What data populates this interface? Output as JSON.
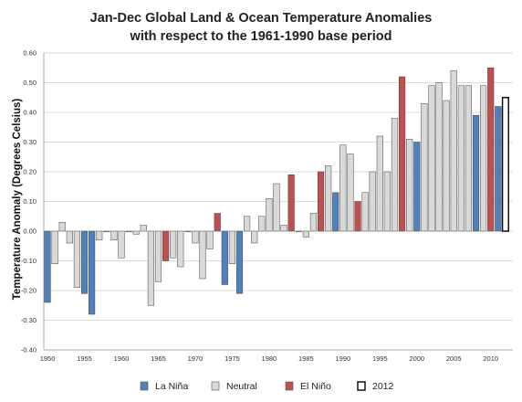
{
  "chart_data": {
    "type": "bar",
    "title": "Jan-Dec Global Land & Ocean Temperature Anomalies",
    "subtitle": "with respect to the 1961-1990 base period",
    "ylabel": "Temperature Anomaly (Degrees Celsius)",
    "xlabel": "",
    "ylim": [
      -0.4,
      0.6
    ],
    "yticks": [
      "0.60",
      "0.50",
      "0.40",
      "0.30",
      "0.20",
      "0.10",
      "0.00",
      "-0.10",
      "-0.20",
      "-0.30",
      "-0.40"
    ],
    "ytick_values": [
      0.6,
      0.5,
      0.4,
      0.3,
      0.2,
      0.1,
      0.0,
      -0.1,
      -0.2,
      -0.3,
      -0.4
    ],
    "xticks": [
      "1950",
      "1955",
      "1960",
      "1965",
      "1970",
      "1975",
      "1980",
      "1985",
      "1990",
      "1995",
      "2000",
      "2005",
      "2010"
    ],
    "xtick_years": [
      1950,
      1955,
      1960,
      1965,
      1970,
      1975,
      1980,
      1985,
      1990,
      1995,
      2000,
      2005,
      2010
    ],
    "grid": true,
    "legend_position": "bottom",
    "legend": [
      {
        "key": "lanina",
        "label": "La Niña",
        "color": "#4f81bd"
      },
      {
        "key": "neutral",
        "label": "Neutral",
        "color": "#d9d9d9"
      },
      {
        "key": "elnino",
        "label": "El Niño",
        "color": "#c0504d"
      },
      {
        "key": "y2012",
        "label": "2012",
        "color": "#ffffff"
      }
    ],
    "categories": [
      "1950",
      "1951",
      "1952",
      "1953",
      "1954",
      "1955",
      "1956",
      "1957",
      "1958",
      "1959",
      "1960",
      "1961",
      "1962",
      "1963",
      "1964",
      "1965",
      "1966",
      "1967",
      "1968",
      "1969",
      "1970",
      "1971",
      "1972",
      "1973",
      "1974",
      "1975",
      "1976",
      "1977",
      "1978",
      "1979",
      "1980",
      "1981",
      "1982",
      "1983",
      "1984",
      "1985",
      "1986",
      "1987",
      "1988",
      "1989",
      "1990",
      "1991",
      "1992",
      "1993",
      "1994",
      "1995",
      "1996",
      "1997",
      "1998",
      "1999",
      "2000",
      "2001",
      "2002",
      "2003",
      "2004",
      "2005",
      "2006",
      "2007",
      "2008",
      "2009",
      "2010",
      "2011",
      "2012"
    ],
    "values": [
      -0.24,
      -0.11,
      0.03,
      -0.04,
      -0.19,
      -0.21,
      -0.28,
      -0.03,
      0.0,
      -0.03,
      -0.09,
      0.0,
      -0.01,
      0.02,
      -0.25,
      -0.17,
      -0.1,
      -0.09,
      -0.12,
      0.0,
      -0.04,
      -0.16,
      -0.06,
      0.06,
      -0.18,
      -0.11,
      -0.21,
      0.05,
      -0.04,
      0.05,
      0.11,
      0.16,
      0.02,
      0.19,
      0.0,
      -0.02,
      0.06,
      0.2,
      0.22,
      0.13,
      0.29,
      0.26,
      0.1,
      0.13,
      0.2,
      0.32,
      0.2,
      0.38,
      0.52,
      0.31,
      0.3,
      0.43,
      0.49,
      0.5,
      0.44,
      0.54,
      0.49,
      0.49,
      0.39,
      0.49,
      0.55,
      0.42,
      0.45
    ],
    "enso": [
      "lanina",
      "neutral",
      "neutral",
      "neutral",
      "neutral",
      "lanina",
      "lanina",
      "neutral",
      "neutral",
      "neutral",
      "neutral",
      "neutral",
      "neutral",
      "neutral",
      "neutral",
      "neutral",
      "elnino",
      "neutral",
      "neutral",
      "neutral",
      "neutral",
      "neutral",
      "neutral",
      "elnino",
      "lanina",
      "neutral",
      "lanina",
      "neutral",
      "neutral",
      "neutral",
      "neutral",
      "neutral",
      "neutral",
      "elnino",
      "neutral",
      "neutral",
      "neutral",
      "elnino",
      "neutral",
      "lanina",
      "neutral",
      "neutral",
      "elnino",
      "neutral",
      "neutral",
      "neutral",
      "neutral",
      "neutral",
      "elnino",
      "neutral",
      "lanina",
      "neutral",
      "neutral",
      "neutral",
      "neutral",
      "neutral",
      "neutral",
      "neutral",
      "lanina",
      "neutral",
      "elnino",
      "lanina",
      "y2012"
    ]
  }
}
